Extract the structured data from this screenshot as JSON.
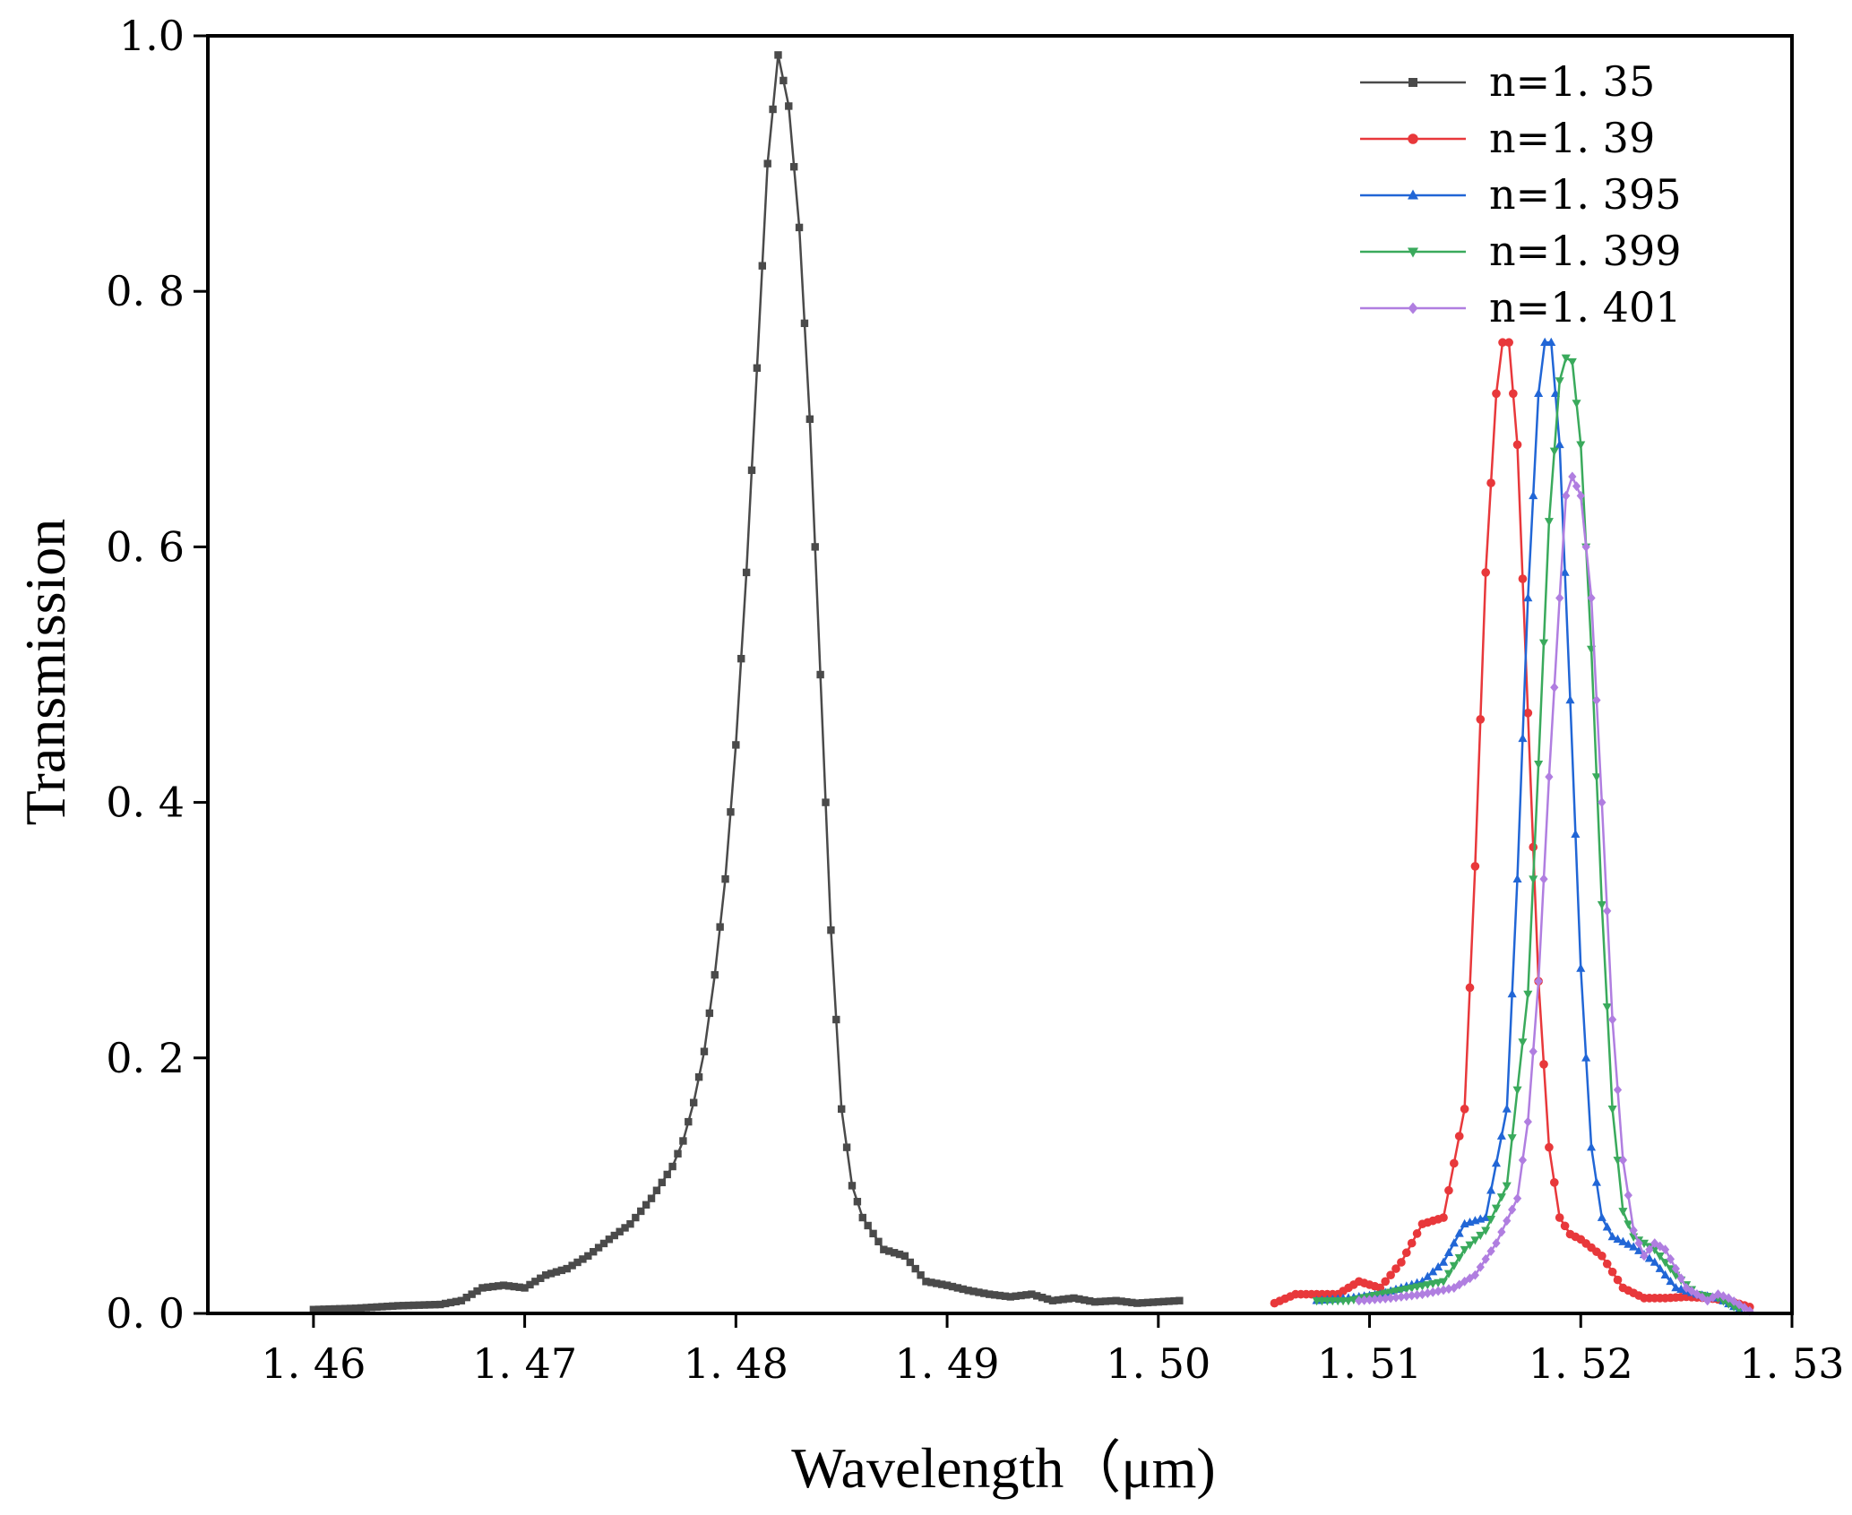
{
  "chart_data": {
    "type": "line",
    "title": "",
    "xlabel": "Wavelength（μm)",
    "ylabel": "Transmission",
    "xlim": [
      1.455,
      1.53
    ],
    "ylim": [
      0.0,
      1.0
    ],
    "x_ticks": [
      {
        "value": 1.46,
        "label": "1. 46"
      },
      {
        "value": 1.47,
        "label": "1. 47"
      },
      {
        "value": 1.48,
        "label": "1. 48"
      },
      {
        "value": 1.49,
        "label": "1. 49"
      },
      {
        "value": 1.5,
        "label": "1. 50"
      },
      {
        "value": 1.51,
        "label": "1. 51"
      },
      {
        "value": 1.52,
        "label": "1. 52"
      },
      {
        "value": 1.53,
        "label": "1. 53"
      }
    ],
    "y_ticks": [
      {
        "value": 0.0,
        "label": "0. 0"
      },
      {
        "value": 0.2,
        "label": "0. 2"
      },
      {
        "value": 0.4,
        "label": "0. 4"
      },
      {
        "value": 0.6,
        "label": "0. 6"
      },
      {
        "value": 0.8,
        "label": "0. 8"
      },
      {
        "value": 1.0,
        "label": "1.0"
      }
    ],
    "grid": false,
    "legend_position": "top-right",
    "series": [
      {
        "name": "n=1. 35",
        "color": "#4a4a4a",
        "marker": "square",
        "x": [
          1.46,
          1.462,
          1.464,
          1.466,
          1.467,
          1.468,
          1.469,
          1.47,
          1.471,
          1.472,
          1.473,
          1.474,
          1.475,
          1.476,
          1.477,
          1.4775,
          1.478,
          1.4785,
          1.479,
          1.4795,
          1.48,
          1.4805,
          1.481,
          1.4815,
          1.482,
          1.4825,
          1.483,
          1.4835,
          1.484,
          1.4845,
          1.485,
          1.4855,
          1.486,
          1.487,
          1.488,
          1.489,
          1.49,
          1.491,
          1.492,
          1.493,
          1.494,
          1.495,
          1.496,
          1.497,
          1.498,
          1.499,
          1.5,
          1.501
        ],
        "y": [
          0.003,
          0.004,
          0.006,
          0.007,
          0.01,
          0.02,
          0.022,
          0.02,
          0.03,
          0.035,
          0.045,
          0.058,
          0.07,
          0.09,
          0.115,
          0.135,
          0.165,
          0.205,
          0.265,
          0.34,
          0.445,
          0.58,
          0.74,
          0.9,
          0.985,
          0.945,
          0.85,
          0.7,
          0.5,
          0.3,
          0.16,
          0.1,
          0.075,
          0.05,
          0.045,
          0.025,
          0.022,
          0.018,
          0.015,
          0.013,
          0.015,
          0.01,
          0.012,
          0.009,
          0.01,
          0.008,
          0.009,
          0.01
        ]
      },
      {
        "name": "n=1. 39",
        "color": "#e8383b",
        "marker": "circle",
        "x": [
          1.5055,
          1.5065,
          1.5075,
          1.5085,
          1.5095,
          1.5105,
          1.5115,
          1.5125,
          1.5135,
          1.5145,
          1.515,
          1.5155,
          1.516,
          1.5163,
          1.5166,
          1.517,
          1.5175,
          1.518,
          1.5185,
          1.519,
          1.5195,
          1.52,
          1.521,
          1.522,
          1.523,
          1.524,
          1.525,
          1.526,
          1.527,
          1.528
        ],
        "y": [
          0.008,
          0.015,
          0.015,
          0.015,
          0.025,
          0.02,
          0.04,
          0.07,
          0.075,
          0.16,
          0.35,
          0.58,
          0.72,
          0.76,
          0.76,
          0.68,
          0.47,
          0.26,
          0.13,
          0.075,
          0.062,
          0.058,
          0.045,
          0.02,
          0.012,
          0.012,
          0.013,
          0.012,
          0.01,
          0.005
        ]
      },
      {
        "name": "n=1. 395",
        "color": "#2166d6",
        "marker": "triangle-up",
        "x": [
          1.5075,
          1.509,
          1.5105,
          1.5115,
          1.5125,
          1.5135,
          1.5145,
          1.5155,
          1.5165,
          1.517,
          1.5175,
          1.518,
          1.5183,
          1.5186,
          1.519,
          1.5195,
          1.52,
          1.5205,
          1.521,
          1.5215,
          1.5225,
          1.5235,
          1.5245,
          1.5255,
          1.5265,
          1.5275
        ],
        "y": [
          0.01,
          0.012,
          0.015,
          0.02,
          0.025,
          0.04,
          0.07,
          0.075,
          0.16,
          0.34,
          0.56,
          0.72,
          0.76,
          0.76,
          0.68,
          0.48,
          0.27,
          0.13,
          0.075,
          0.06,
          0.052,
          0.04,
          0.02,
          0.015,
          0.012,
          0.003
        ]
      },
      {
        "name": "n=1. 399",
        "color": "#3aaa5c",
        "marker": "triangle-down",
        "x": [
          1.5075,
          1.509,
          1.5105,
          1.512,
          1.5135,
          1.5145,
          1.5155,
          1.5165,
          1.5175,
          1.518,
          1.5185,
          1.519,
          1.5193,
          1.5196,
          1.52,
          1.5205,
          1.521,
          1.5215,
          1.522,
          1.5225,
          1.5235,
          1.5245,
          1.5255,
          1.5265,
          1.5275
        ],
        "y": [
          0.01,
          0.01,
          0.015,
          0.02,
          0.025,
          0.05,
          0.065,
          0.1,
          0.25,
          0.43,
          0.62,
          0.73,
          0.748,
          0.745,
          0.68,
          0.52,
          0.32,
          0.16,
          0.08,
          0.06,
          0.05,
          0.03,
          0.015,
          0.012,
          0.003
        ]
      },
      {
        "name": "n=1. 401",
        "color": "#b07ee0",
        "marker": "diamond",
        "x": [
          1.5095,
          1.511,
          1.5125,
          1.514,
          1.515,
          1.516,
          1.517,
          1.5175,
          1.518,
          1.5185,
          1.519,
          1.5193,
          1.5196,
          1.52,
          1.5205,
          1.521,
          1.5215,
          1.522,
          1.5225,
          1.523,
          1.5235,
          1.524,
          1.525,
          1.526,
          1.5265,
          1.527,
          1.528
        ],
        "y": [
          0.01,
          0.012,
          0.015,
          0.02,
          0.03,
          0.055,
          0.09,
          0.15,
          0.26,
          0.42,
          0.56,
          0.64,
          0.655,
          0.64,
          0.56,
          0.4,
          0.23,
          0.12,
          0.065,
          0.045,
          0.055,
          0.05,
          0.02,
          0.01,
          0.015,
          0.012,
          0.002
        ]
      }
    ]
  }
}
